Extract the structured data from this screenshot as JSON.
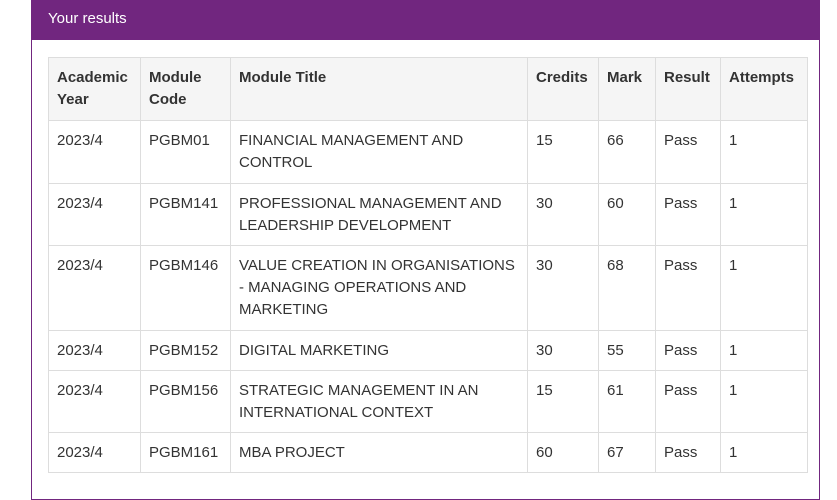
{
  "panel": {
    "title": "Your results"
  },
  "table": {
    "columns": [
      "Academic Year",
      "Module Code",
      "Module Title",
      "Credits",
      "Mark",
      "Result",
      "Attempts"
    ],
    "rows": [
      [
        "2023/4",
        "PGBM01",
        "FINANCIAL MANAGEMENT AND CONTROL",
        15,
        66,
        "Pass",
        1
      ],
      [
        "2023/4",
        "PGBM141",
        "PROFESSIONAL MANAGEMENT AND LEADERSHIP DEVELOPMENT",
        30,
        60,
        "Pass",
        1
      ],
      [
        "2023/4",
        "PGBM146",
        "VALUE CREATION IN ORGANISATIONS - MANAGING OPERATIONS AND MARKETING",
        30,
        68,
        "Pass",
        1
      ],
      [
        "2023/4",
        "PGBM152",
        "DIGITAL MARKETING",
        30,
        55,
        "Pass",
        1
      ],
      [
        "2023/4",
        "PGBM156",
        "STRATEGIC MANAGEMENT IN AN INTERNATIONAL CONTEXT",
        15,
        61,
        "Pass",
        1
      ],
      [
        "2023/4",
        "PGBM161",
        "MBA PROJECT",
        60,
        67,
        "Pass",
        1
      ]
    ]
  }
}
